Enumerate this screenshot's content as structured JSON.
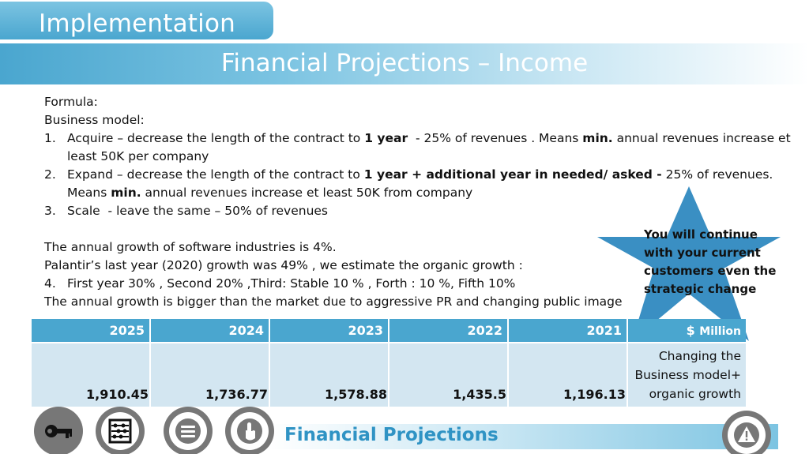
{
  "header": {
    "section_tab": "Implementation",
    "title": "Financial Projections – Income"
  },
  "content": {
    "formula_label": "Formula:",
    "business_model_label": "Business model:",
    "items": [
      {
        "num": "1.",
        "pre": "Acquire – decrease the length of the contract to ",
        "bold": "1 year",
        "mid": "  - 25% of revenues . Means ",
        "bold2": "min.",
        "post": " annual revenues increase et least 50K per company"
      },
      {
        "num": "2.",
        "pre": "Expand – decrease the length of the contract to ",
        "bold": "1 year + additional year in needed/ asked -",
        "mid": " 25% of revenues. Means ",
        "bold2": "min.",
        "post": " annual revenues increase et least 50K from company"
      },
      {
        "num": "3.",
        "pre": "Scale  - leave the same – 50% of revenues"
      }
    ],
    "growth_line": "The annual growth of software industries is 4%.",
    "palantir_line": "Palantir’s last year (2020)  growth was 49% , we estimate the organic growth :",
    "item4_num": "4.",
    "item4_text": "First year 30% , Second 20% ,Third: Stable 10 % , Forth : 10 %, Fifth 10%",
    "closing_line": "The annual growth is bigger than the market due to aggressive PR and changing public image"
  },
  "callout": {
    "text": "You will continue with your current customers even the strategic change",
    "color": "#3a8fc3"
  },
  "table": {
    "headers": [
      "2025",
      "2024",
      "2023",
      "2022",
      "2021"
    ],
    "unit_symbol": "$",
    "unit_word": "Million",
    "values": [
      "1,910.45",
      "1,736.77",
      "1,578.88",
      "1,435.5",
      "1,196.13"
    ],
    "description": "Changing the Business model+ organic growth"
  },
  "footer": {
    "title": "Financial Projections",
    "icons": [
      "key-icon",
      "abacus-icon",
      "menu-icon",
      "touch-icon",
      "warning-icon"
    ]
  },
  "colors": {
    "accent": "#4aa6cf",
    "light_accent": "#7cc4e2",
    "cell_bg": "#d3e6f1",
    "footer_title": "#2f93c4"
  }
}
